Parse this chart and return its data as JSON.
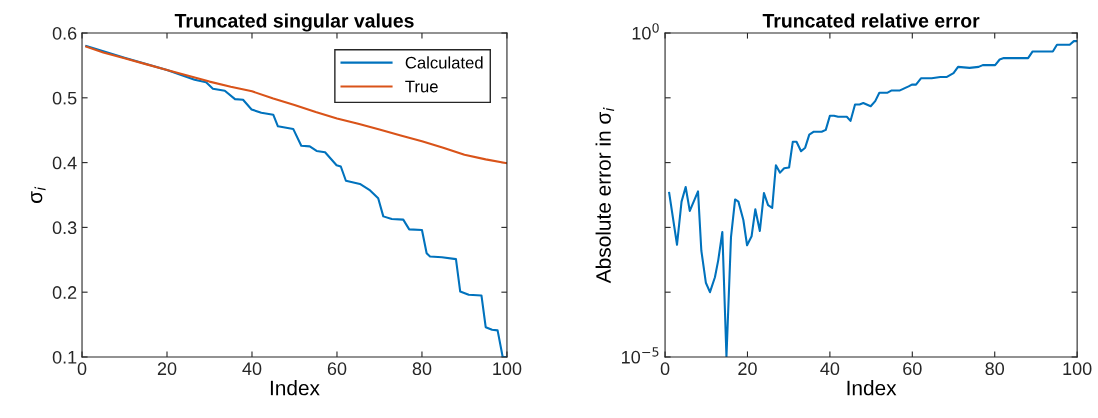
{
  "chart_data": [
    {
      "type": "line",
      "title": "Truncated singular values",
      "xlabel": "Index",
      "ylabel": "σ$_{i}$",
      "xlim": [
        0,
        100
      ],
      "ylim": [
        0.1,
        0.6
      ],
      "xticks": [
        0,
        20,
        40,
        60,
        80,
        100
      ],
      "yticks": [
        0.1,
        0.2,
        0.3,
        0.4,
        0.5,
        0.6
      ],
      "grid": false,
      "legend": "top right",
      "series": [
        {
          "name": "Calculated",
          "color": "#0072bd",
          "x": [
            1,
            10,
            20,
            26.5,
            29.2,
            30.8,
            33.6,
            36,
            37.9,
            39.9,
            42.2,
            45,
            46.1,
            49.7,
            51.6,
            53.6,
            55.2,
            57.2,
            59.9,
            60.9,
            62.1,
            65.4,
            67.8,
            69.7,
            70.9,
            72.9,
            75.6,
            77,
            80,
            81.1,
            81.9,
            84.7,
            88,
            89,
            91,
            94,
            95,
            96.5,
            97.8,
            99,
            100
          ],
          "values": [
            0.58,
            0.562,
            0.543,
            0.528,
            0.524,
            0.514,
            0.511,
            0.498,
            0.497,
            0.482,
            0.477,
            0.474,
            0.456,
            0.452,
            0.426,
            0.425,
            0.418,
            0.416,
            0.396,
            0.394,
            0.372,
            0.367,
            0.357,
            0.345,
            0.317,
            0.313,
            0.312,
            0.297,
            0.296,
            0.26,
            0.255,
            0.254,
            0.251,
            0.201,
            0.196,
            0.195,
            0.146,
            0.142,
            0.141,
            0.1,
            0.1
          ]
        },
        {
          "name": "True",
          "color": "#d95319",
          "x": [
            1,
            5,
            10,
            15,
            20,
            25,
            30,
            35,
            40,
            45,
            50,
            55,
            60,
            65,
            70,
            75,
            80,
            85,
            90,
            95,
            100
          ],
          "values": [
            0.579,
            0.57,
            0.561,
            0.552,
            0.543,
            0.534,
            0.525,
            0.517,
            0.51,
            0.499,
            0.489,
            0.478,
            0.468,
            0.46,
            0.451,
            0.442,
            0.433,
            0.423,
            0.412,
            0.405,
            0.399
          ]
        }
      ]
    },
    {
      "type": "line",
      "title": "Truncated relative error",
      "xlabel": "Index",
      "ylabel": "Absolute error in σ$_{i}$",
      "log": "y",
      "xlim": [
        0,
        100
      ],
      "ylim": [
        1e-05,
        1
      ],
      "xticks": [
        0,
        20,
        40,
        60,
        80,
        100
      ],
      "yticks": [
        {
          "value": 1e-05,
          "label": "10$^{−5}$"
        },
        {
          "value": 0.0001,
          "label": null
        },
        {
          "value": 0.001,
          "label": null
        },
        {
          "value": 0.01,
          "label": null
        },
        {
          "value": 0.1,
          "label": null
        },
        {
          "value": 1,
          "label": "10$^{0}$"
        }
      ],
      "grid": false,
      "series": [
        {
          "color": "#0072bd",
          "x": [
            1,
            2.9,
            4,
            5,
            6,
            8,
            8.8,
            9.9,
            10.9,
            12.1,
            12.9,
            13.9,
            14.9,
            16,
            17,
            17.8,
            19,
            19.9,
            21,
            21.9,
            23,
            24,
            25,
            26,
            26.9,
            27.9,
            28.9,
            30.1,
            31,
            31.9,
            33,
            34,
            35,
            36.1,
            38,
            39,
            40,
            41,
            42,
            44.1,
            45,
            46.1,
            47.2,
            48.1,
            49.9,
            51,
            52,
            54,
            55,
            57,
            59.1,
            59.9,
            60.9,
            62.1,
            64.7,
            66.8,
            68.4,
            70,
            71.1,
            73.9,
            76.1,
            77.1,
            80.1,
            81.2,
            82.2,
            88.1,
            89.2,
            94.1,
            95.1,
            98.2,
            99.2,
            100
          ],
          "values": [
            0.0034,
            0.00054,
            0.0025,
            0.0042,
            0.0018,
            0.0036,
            0.00044,
            0.00014,
            0.0001,
            0.00017,
            0.00031,
            0.00085,
            1e-05,
            0.00071,
            0.0027,
            0.0025,
            0.0013,
            0.00053,
            0.00073,
            0.0019,
            0.00088,
            0.0034,
            0.0022,
            0.002,
            0.0091,
            0.007,
            0.0082,
            0.0084,
            0.021,
            0.021,
            0.015,
            0.017,
            0.027,
            0.03,
            0.03,
            0.032,
            0.053,
            0.053,
            0.051,
            0.051,
            0.044,
            0.079,
            0.079,
            0.083,
            0.074,
            0.089,
            0.12,
            0.12,
            0.13,
            0.13,
            0.15,
            0.16,
            0.16,
            0.2,
            0.2,
            0.21,
            0.21,
            0.24,
            0.3,
            0.29,
            0.3,
            0.32,
            0.32,
            0.39,
            0.41,
            0.41,
            0.52,
            0.52,
            0.66,
            0.66,
            0.75,
            0.75
          ]
        }
      ]
    }
  ]
}
